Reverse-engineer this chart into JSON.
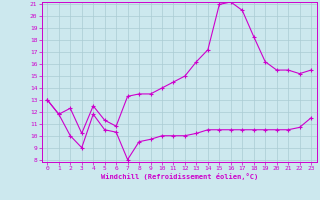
{
  "xlabel": "Windchill (Refroidissement éolien,°C)",
  "bg_color": "#cce8ee",
  "grid_color": "#aaccd4",
  "line_color": "#cc00cc",
  "x_hours": [
    0,
    1,
    2,
    3,
    4,
    5,
    6,
    7,
    8,
    9,
    10,
    11,
    12,
    13,
    14,
    15,
    16,
    17,
    18,
    19,
    20,
    21,
    22,
    23
  ],
  "series_upper": [
    13.0,
    11.8,
    12.3,
    10.2,
    12.5,
    11.3,
    10.8,
    13.3,
    13.5,
    13.5,
    14.0,
    14.5,
    15.0,
    16.2,
    17.2,
    21.0,
    21.2,
    20.5,
    18.3,
    16.2,
    15.5,
    15.5,
    15.2,
    15.5
  ],
  "series_lower": [
    13.0,
    11.8,
    10.0,
    9.0,
    11.8,
    10.5,
    10.3,
    8.0,
    9.5,
    9.7,
    10.0,
    10.0,
    10.0,
    10.2,
    10.5,
    10.5,
    10.5,
    10.5,
    10.5,
    10.5,
    10.5,
    10.5,
    10.7,
    11.5
  ],
  "ylim_min": 8,
  "ylim_max": 21,
  "yticks": [
    8,
    9,
    10,
    11,
    12,
    13,
    14,
    15,
    16,
    17,
    18,
    19,
    20,
    21
  ],
  "tick_fontsize": 4.5,
  "xlabel_fontsize": 5.0
}
